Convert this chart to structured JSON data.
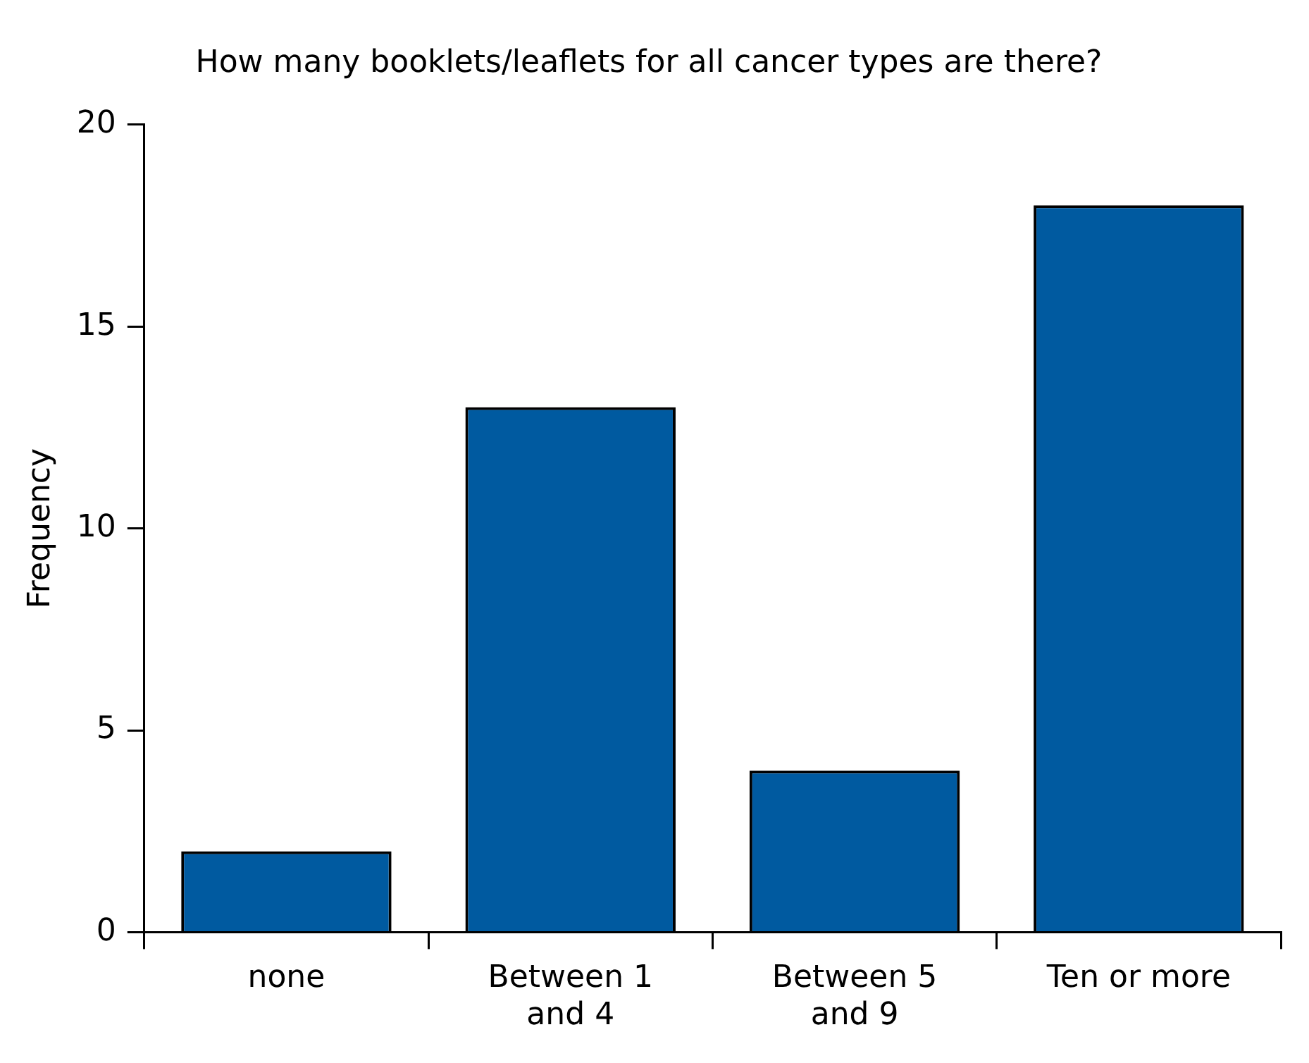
{
  "chart_data": {
    "type": "bar",
    "title": "How many booklets/leaflets for all cancer types are there?",
    "ylabel": "Frequency",
    "categories": [
      "none",
      "Between 1 and 4",
      "Between 5 and 9",
      "Ten or more"
    ],
    "values": [
      2,
      13,
      4,
      18
    ],
    "color": "#005aa0",
    "ylim": [
      0,
      20
    ],
    "yticks": [
      0,
      5,
      10,
      15,
      20
    ],
    "grid": false,
    "legend": false
  }
}
